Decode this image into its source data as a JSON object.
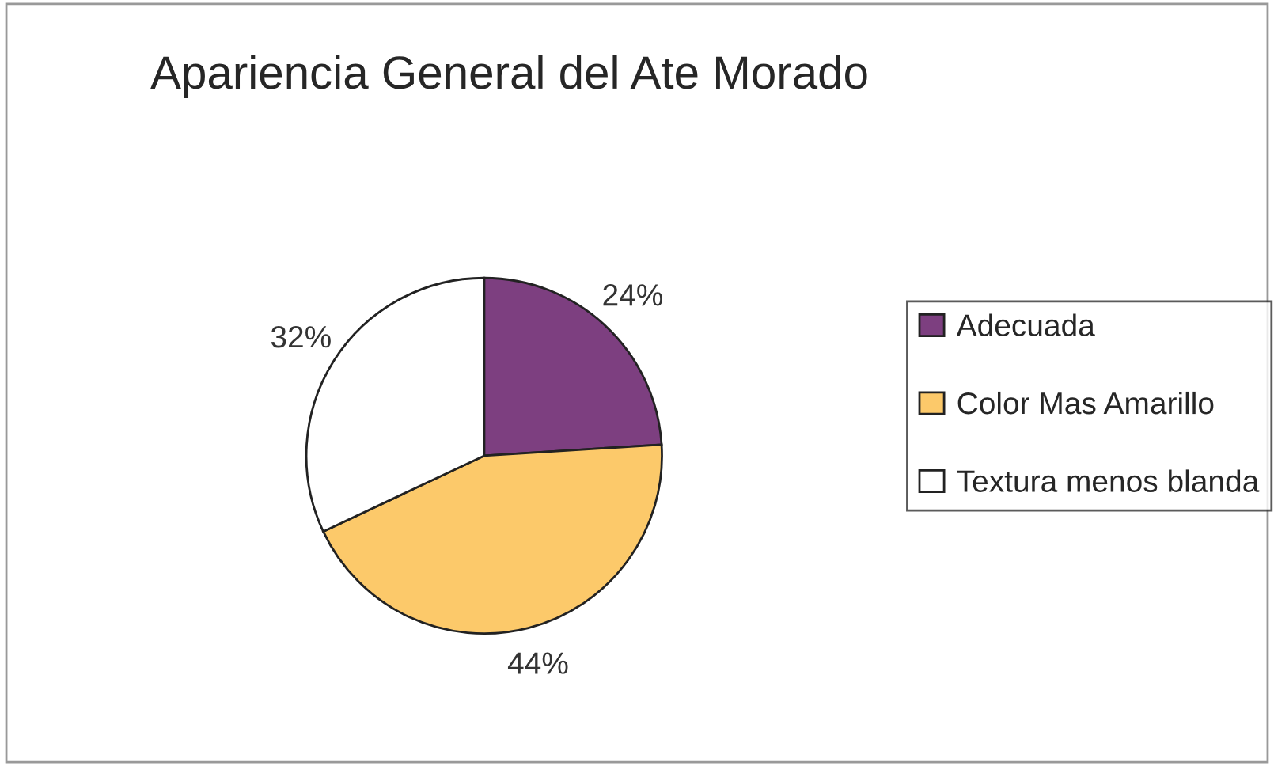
{
  "chart_data": {
    "type": "pie",
    "title": "Apariencia General del Ate Morado",
    "categories": [
      "Adecuada",
      "Color Mas Amarillo",
      "Textura menos blanda"
    ],
    "values": [
      24,
      44,
      32
    ],
    "colors": [
      "#7d3f80",
      "#fcc96a",
      "#ffffff"
    ],
    "value_labels": [
      "24%",
      "44%",
      "32%"
    ],
    "legend": "right"
  }
}
